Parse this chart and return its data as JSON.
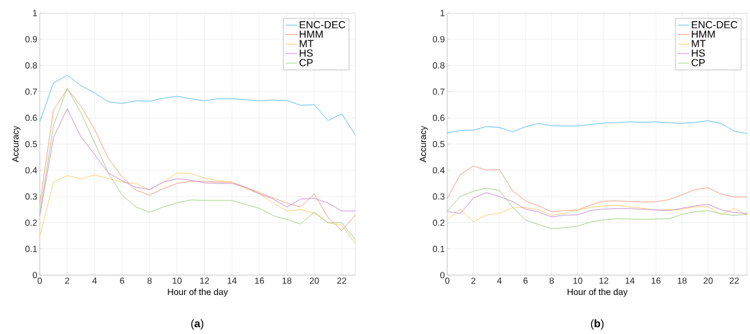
{
  "chart_data": [
    {
      "type": "line",
      "xlabel": "Hour of the day",
      "ylabel": "Accuracy",
      "annotations": [
        "(**a**)"
      ],
      "x": [
        0,
        1,
        2,
        3,
        4,
        5,
        6,
        7,
        8,
        9,
        10,
        11,
        12,
        13,
        14,
        15,
        16,
        17,
        18,
        19,
        20,
        21,
        22,
        23
      ],
      "xlim": [
        0,
        23
      ],
      "xticks": [
        0,
        2,
        4,
        6,
        8,
        10,
        12,
        14,
        16,
        18,
        20,
        22
      ],
      "ylim": [
        0,
        1
      ],
      "yticks": [
        0,
        0.1,
        0.2,
        0.3,
        0.4,
        0.5,
        0.6,
        0.7,
        0.8,
        0.9,
        1
      ],
      "grid": true,
      "legend": "top right",
      "series": [
        {
          "name": "ENC-DEC",
          "color": "#4db8e8",
          "values": [
            0.585,
            0.733,
            0.763,
            0.723,
            0.695,
            0.661,
            0.655,
            0.665,
            0.663,
            0.675,
            0.682,
            0.673,
            0.665,
            0.673,
            0.673,
            0.669,
            0.665,
            0.668,
            0.666,
            0.648,
            0.65,
            0.59,
            0.615,
            0.533
          ]
        },
        {
          "name": "HMM",
          "color": "#f4957a",
          "values": [
            0.27,
            0.63,
            0.71,
            0.645,
            0.555,
            0.445,
            0.375,
            0.325,
            0.305,
            0.33,
            0.35,
            0.358,
            0.358,
            0.355,
            0.355,
            0.335,
            0.315,
            0.295,
            0.275,
            0.26,
            0.31,
            0.22,
            0.17,
            0.23
          ]
        },
        {
          "name": "MT",
          "color": "#fbc96a",
          "values": [
            0.145,
            0.355,
            0.38,
            0.367,
            0.382,
            0.368,
            0.355,
            0.35,
            0.325,
            0.355,
            0.39,
            0.388,
            0.37,
            0.36,
            0.355,
            0.33,
            0.31,
            0.275,
            0.245,
            0.25,
            0.235,
            0.2,
            0.19,
            0.12
          ]
        },
        {
          "name": "HS",
          "color": "#c486c9",
          "values": [
            0.225,
            0.525,
            0.635,
            0.527,
            0.46,
            0.39,
            0.36,
            0.335,
            0.327,
            0.355,
            0.368,
            0.362,
            0.352,
            0.35,
            0.35,
            0.335,
            0.31,
            0.29,
            0.26,
            0.29,
            0.293,
            0.275,
            0.245,
            0.245
          ]
        },
        {
          "name": "CP",
          "color": "#9ccc7a",
          "values": [
            0.235,
            0.57,
            0.713,
            0.62,
            0.505,
            0.39,
            0.305,
            0.26,
            0.24,
            0.26,
            0.276,
            0.287,
            0.285,
            0.285,
            0.285,
            0.27,
            0.255,
            0.227,
            0.212,
            0.195,
            0.24,
            0.2,
            0.2,
            0.135
          ]
        }
      ]
    },
    {
      "type": "line",
      "xlabel": "Hour of the day",
      "ylabel": "Accuracy",
      "annotations": [
        "(**b**)"
      ],
      "x": [
        0,
        1,
        2,
        3,
        4,
        5,
        6,
        7,
        8,
        9,
        10,
        11,
        12,
        13,
        14,
        15,
        16,
        17,
        18,
        19,
        20,
        21,
        22,
        23
      ],
      "xlim": [
        0,
        23
      ],
      "xticks": [
        0,
        2,
        4,
        6,
        8,
        10,
        12,
        14,
        16,
        18,
        20,
        22
      ],
      "ylim": [
        0,
        1
      ],
      "yticks": [
        0,
        0.1,
        0.2,
        0.3,
        0.4,
        0.5,
        0.6,
        0.7,
        0.8,
        0.9,
        1
      ],
      "grid": true,
      "legend": "top right",
      "series": [
        {
          "name": "ENC-DEC",
          "color": "#4db8e8",
          "values": [
            0.543,
            0.552,
            0.553,
            0.567,
            0.563,
            0.547,
            0.566,
            0.579,
            0.57,
            0.569,
            0.569,
            0.575,
            0.58,
            0.582,
            0.585,
            0.583,
            0.585,
            0.581,
            0.579,
            0.582,
            0.589,
            0.579,
            0.549,
            0.54
          ]
        },
        {
          "name": "HMM",
          "color": "#f4957a",
          "values": [
            0.293,
            0.384,
            0.416,
            0.401,
            0.403,
            0.322,
            0.283,
            0.264,
            0.242,
            0.246,
            0.249,
            0.268,
            0.282,
            0.283,
            0.281,
            0.279,
            0.28,
            0.288,
            0.307,
            0.326,
            0.334,
            0.309,
            0.298,
            0.298
          ]
        },
        {
          "name": "MT",
          "color": "#fbc96a",
          "values": [
            0.211,
            0.253,
            0.203,
            0.229,
            0.236,
            0.258,
            0.257,
            0.249,
            0.228,
            0.236,
            0.249,
            0.259,
            0.264,
            0.266,
            0.26,
            0.255,
            0.248,
            0.25,
            0.25,
            0.261,
            0.261,
            0.231,
            0.254,
            0.23
          ]
        },
        {
          "name": "HS",
          "color": "#c486c9",
          "values": [
            0.243,
            0.235,
            0.294,
            0.315,
            0.3,
            0.281,
            0.252,
            0.241,
            0.222,
            0.229,
            0.23,
            0.247,
            0.252,
            0.254,
            0.254,
            0.251,
            0.249,
            0.246,
            0.255,
            0.264,
            0.27,
            0.249,
            0.239,
            0.235
          ]
        },
        {
          "name": "CP",
          "color": "#9ccc7a",
          "values": [
            0.245,
            0.3,
            0.32,
            0.332,
            0.323,
            0.26,
            0.21,
            0.193,
            0.177,
            0.181,
            0.187,
            0.203,
            0.211,
            0.215,
            0.214,
            0.213,
            0.214,
            0.215,
            0.232,
            0.242,
            0.246,
            0.234,
            0.228,
            0.232
          ]
        }
      ]
    }
  ]
}
